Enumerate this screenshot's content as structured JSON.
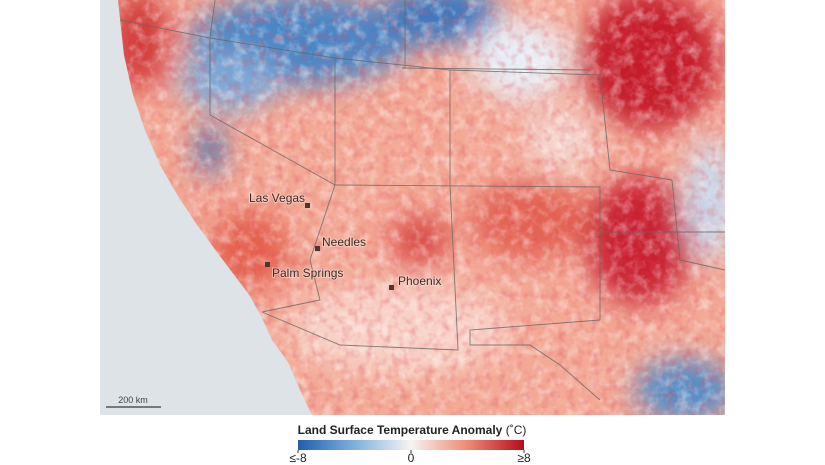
{
  "map": {
    "cities": [
      {
        "label": "Las Vegas"
      },
      {
        "label": "Needles"
      },
      {
        "label": "Palm Springs"
      },
      {
        "label": "Phoenix"
      }
    ],
    "scale_bar": "200 km"
  },
  "legend": {
    "title": "Land Surface Temperature Anomaly",
    "unit": "(˚C)",
    "range": [
      -8,
      8
    ],
    "ticks": [
      {
        "value": -8,
        "label": "≤-8"
      },
      0,
      {
        "value": 8,
        "label": "≥8"
      }
    ]
  }
}
